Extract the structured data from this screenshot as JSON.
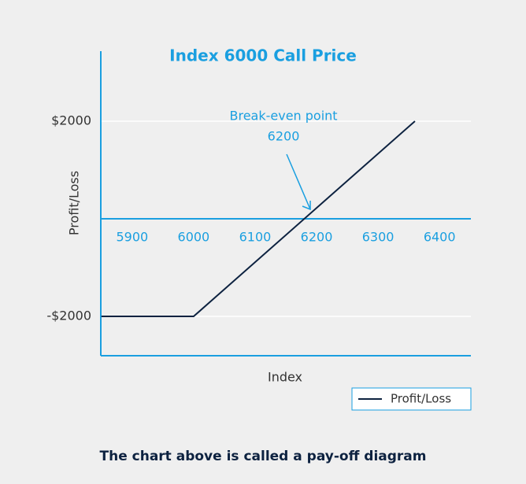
{
  "chart_data": {
    "type": "line",
    "title": "Index 6000 Call Price",
    "x_label": "Index",
    "y_label": "Profit/Loss",
    "x": [
      5850,
      6000,
      6360
    ],
    "series": [
      {
        "name": "Profit/Loss",
        "color": "#0d2240",
        "values": [
          -2000,
          -2000,
          2000
        ]
      }
    ],
    "xlim": [
      5849,
      6451
    ],
    "xticks": [
      5900,
      6000,
      6100,
      6200,
      6300,
      6400
    ],
    "ylim": [
      -2806,
      3435
    ],
    "yticks": [
      {
        "value": 2000,
        "label": "$2000"
      },
      {
        "value": -2000,
        "label": "-$2000"
      }
    ],
    "grid": true,
    "legend": "lower right",
    "annotation": [
      "Break-even point",
      "6200"
    ],
    "caption": "The chart above is called a pay-off diagram"
  }
}
